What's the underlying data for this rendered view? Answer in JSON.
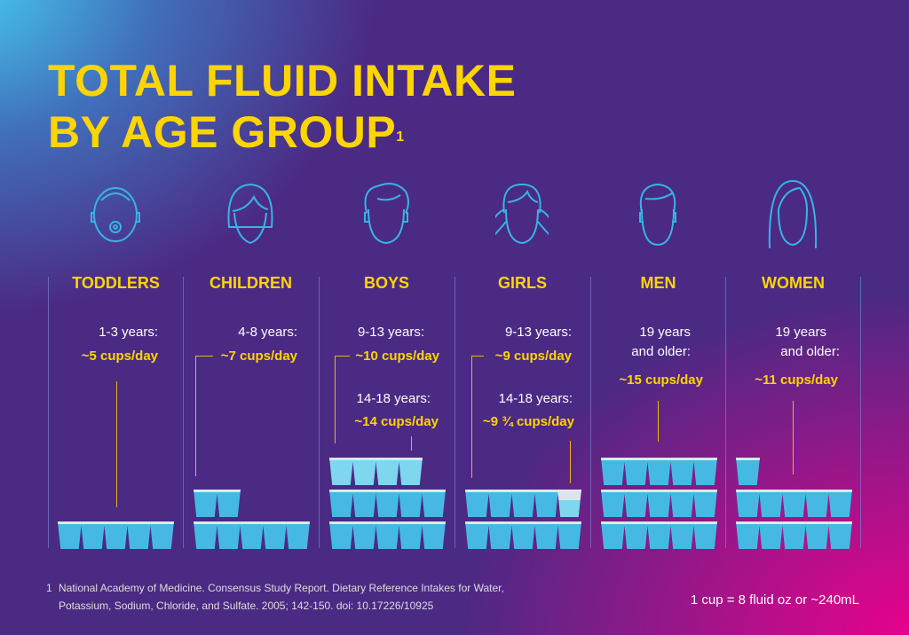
{
  "title": {
    "line1": "TOTAL FLUID INTAKE",
    "line2": "BY AGE GROUP",
    "footnote_mark": "1"
  },
  "colors": {
    "accent": "#ffd500",
    "cup": "#45b9e3",
    "cup_light": "#7ed6ef",
    "icon": "#36b5e5"
  },
  "groups": [
    {
      "label": "TODDLERS",
      "icon": "toddler-face-icon",
      "entries": [
        {
          "age": "1-3 years:",
          "amount": "~5 cups/day",
          "cups": 5
        }
      ]
    },
    {
      "label": "CHILDREN",
      "icon": "child-face-icon",
      "entries": [
        {
          "age": "4-8 years:",
          "amount": "~7 cups/day",
          "cups": 7
        }
      ]
    },
    {
      "label": "BOYS",
      "icon": "boy-face-icon",
      "entries": [
        {
          "age": "9-13 years:",
          "amount": "~10 cups/day",
          "cups": 10
        },
        {
          "age": "14-18 years:",
          "amount": "~14 cups/day",
          "cups": 14
        }
      ]
    },
    {
      "label": "GIRLS",
      "icon": "girl-face-icon",
      "entries": [
        {
          "age": "9-13 years:",
          "amount": "~9 cups/day",
          "cups": 9
        },
        {
          "age": "14-18 years:",
          "amount": "~9 ¾ cups/day",
          "cups": 9.75
        }
      ]
    },
    {
      "label": "MEN",
      "icon": "man-face-icon",
      "entries": [
        {
          "age": "19 years",
          "age2": "and older:",
          "amount": "~15 cups/day",
          "cups": 15
        }
      ]
    },
    {
      "label": "WOMEN",
      "icon": "woman-face-icon",
      "entries": [
        {
          "age": "19 years",
          "age2": "and older:",
          "amount": "~11 cups/day",
          "cups": 11
        }
      ]
    }
  ],
  "footnote": {
    "number": "1",
    "line1": "National Academy of Medicine. Consensus Study Report. Dietary Reference Intakes for Water,",
    "line2": "Potassium, Sodium, Chloride, and Sulfate. 2005; 142-150. doi: 10.17226/10925"
  },
  "conversion": "1 cup = 8 fluid oz or ~240mL"
}
